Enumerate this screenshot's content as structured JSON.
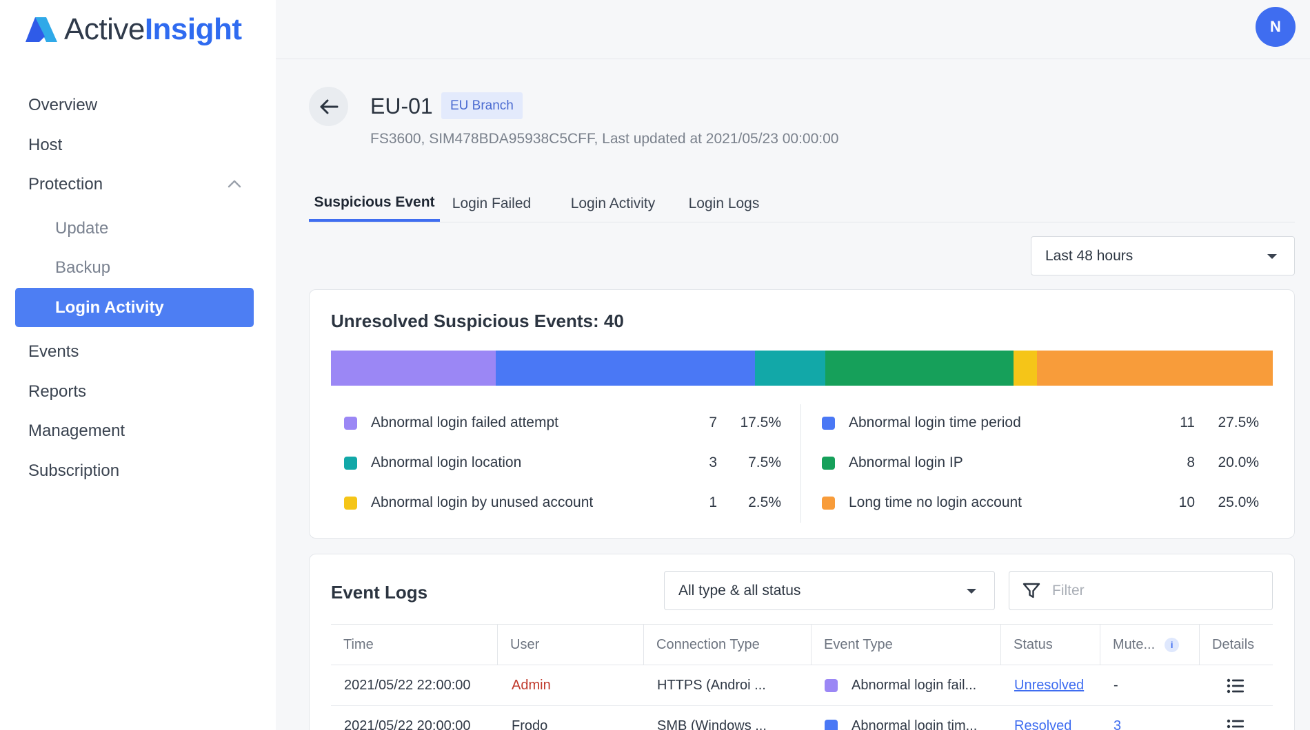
{
  "app": {
    "logo_part1": "Active",
    "logo_part2": "Insight",
    "brand_color": "#2f6bf0"
  },
  "sidebar": {
    "items": [
      {
        "label": "Overview"
      },
      {
        "label": "Host"
      },
      {
        "label": "Protection"
      },
      {
        "label": "Update"
      },
      {
        "label": "Backup"
      },
      {
        "label": "Login Activity"
      },
      {
        "label": "Events"
      },
      {
        "label": "Reports"
      },
      {
        "label": "Management"
      },
      {
        "label": "Subscription"
      }
    ],
    "active_item": "Login Activity"
  },
  "user": {
    "avatar_initial": "N"
  },
  "header": {
    "title": "EU-01",
    "badge": "EU Branch",
    "subtitle": "FS3600, SIM478BDA95938C5CFF, Last updated at 2021/05/23 00:00:00"
  },
  "tabs": [
    {
      "label": "Suspicious Event",
      "active": true
    },
    {
      "label": "Login Failed",
      "active": false
    },
    {
      "label": "Login Activity",
      "active": false
    },
    {
      "label": "Login Logs",
      "active": false
    }
  ],
  "time_range": {
    "selected": "Last 48 hours"
  },
  "summary": {
    "title": "Unresolved Suspicious Events: 40",
    "categories": [
      {
        "label": "Abnormal login failed attempt",
        "count": "7",
        "pct": "17.5%",
        "color": "#9b87f5"
      },
      {
        "label": "Abnormal login time period",
        "count": "11",
        "pct": "27.5%",
        "color": "#4a78f5"
      },
      {
        "label": "Abnormal login location",
        "count": "3",
        "pct": "7.5%",
        "color": "#12a8a8"
      },
      {
        "label": "Abnormal login IP",
        "count": "8",
        "pct": "20.0%",
        "color": "#16a05a"
      },
      {
        "label": "Abnormal login by unused account",
        "count": "1",
        "pct": "2.5%",
        "color": "#f5c518"
      },
      {
        "label": "Long time no login account",
        "count": "10",
        "pct": "25.0%",
        "color": "#f89c3a"
      }
    ]
  },
  "event_logs": {
    "title": "Event Logs",
    "type_filter": "All type & all status",
    "filter_placeholder": "Filter",
    "columns": [
      "Time",
      "User",
      "Connection Type",
      "Event Type",
      "Status",
      "Mute...",
      "Details"
    ],
    "rows": [
      {
        "time": "2021/05/22 22:00:00",
        "user": "Admin",
        "connection": "HTTPS (Androi ...",
        "event_type": "Abnormal login fail...",
        "event_color": "#9b87f5",
        "status": "Unresolved",
        "mute": "-"
      },
      {
        "time": "2021/05/22 20:00:00",
        "user": "Frodo",
        "connection": "SMB (Windows ...",
        "event_type": "Abnormal login tim...",
        "event_color": "#4a78f5",
        "status": "Resolved",
        "mute": "3"
      }
    ]
  }
}
